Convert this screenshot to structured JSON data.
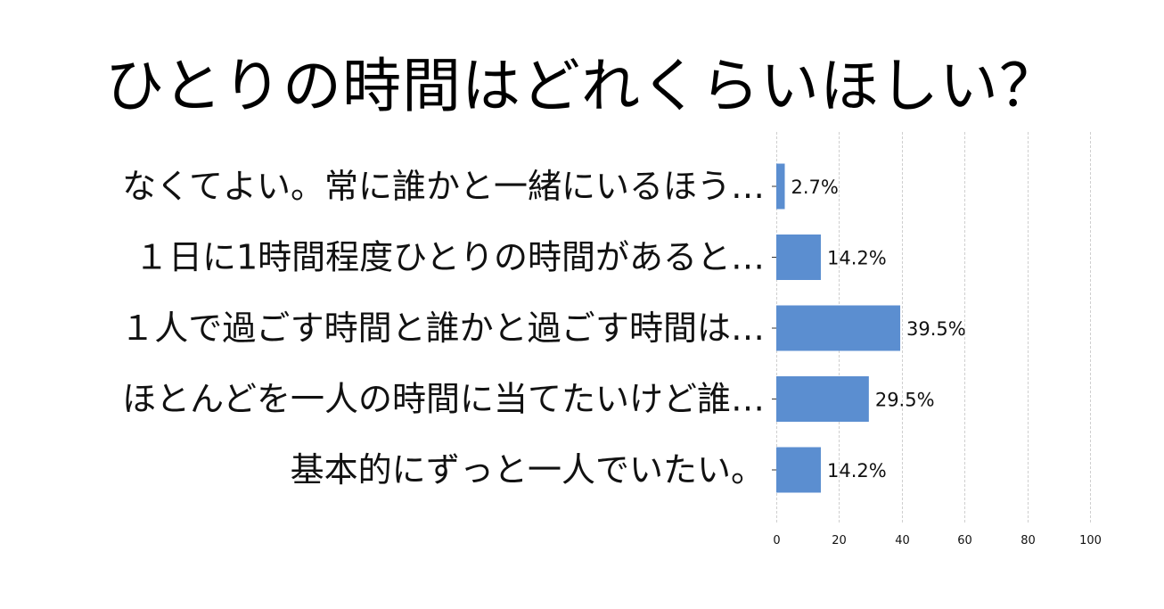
{
  "chart_data": {
    "type": "bar",
    "orientation": "horizontal",
    "title": "ひとりの時間はどれくらいほしい？",
    "categories": [
      "なくてよい。常に誰かと一緒にいるほう…",
      "１日に1時間程度ひとりの時間があると…",
      "１人で過ごす時間と誰かと過ごす時間は…",
      "ほとんどを一人の時間に当てたいけど誰…",
      "基本的にずっと一人でいたい。"
    ],
    "values": [
      2.7,
      14.2,
      39.5,
      29.5,
      14.2
    ],
    "value_labels": [
      "2.7%",
      "14.2%",
      "39.5%",
      "29.5%",
      "14.2%"
    ],
    "xlim": [
      0,
      100
    ],
    "xticks": [
      0,
      20,
      40,
      60,
      80,
      100
    ],
    "xtick_labels": [
      "0",
      "20",
      "40",
      "60",
      "80",
      "100"
    ],
    "xgrid": true,
    "ygrid": false,
    "legend": "none",
    "bar_color": "#5b8ed0"
  }
}
